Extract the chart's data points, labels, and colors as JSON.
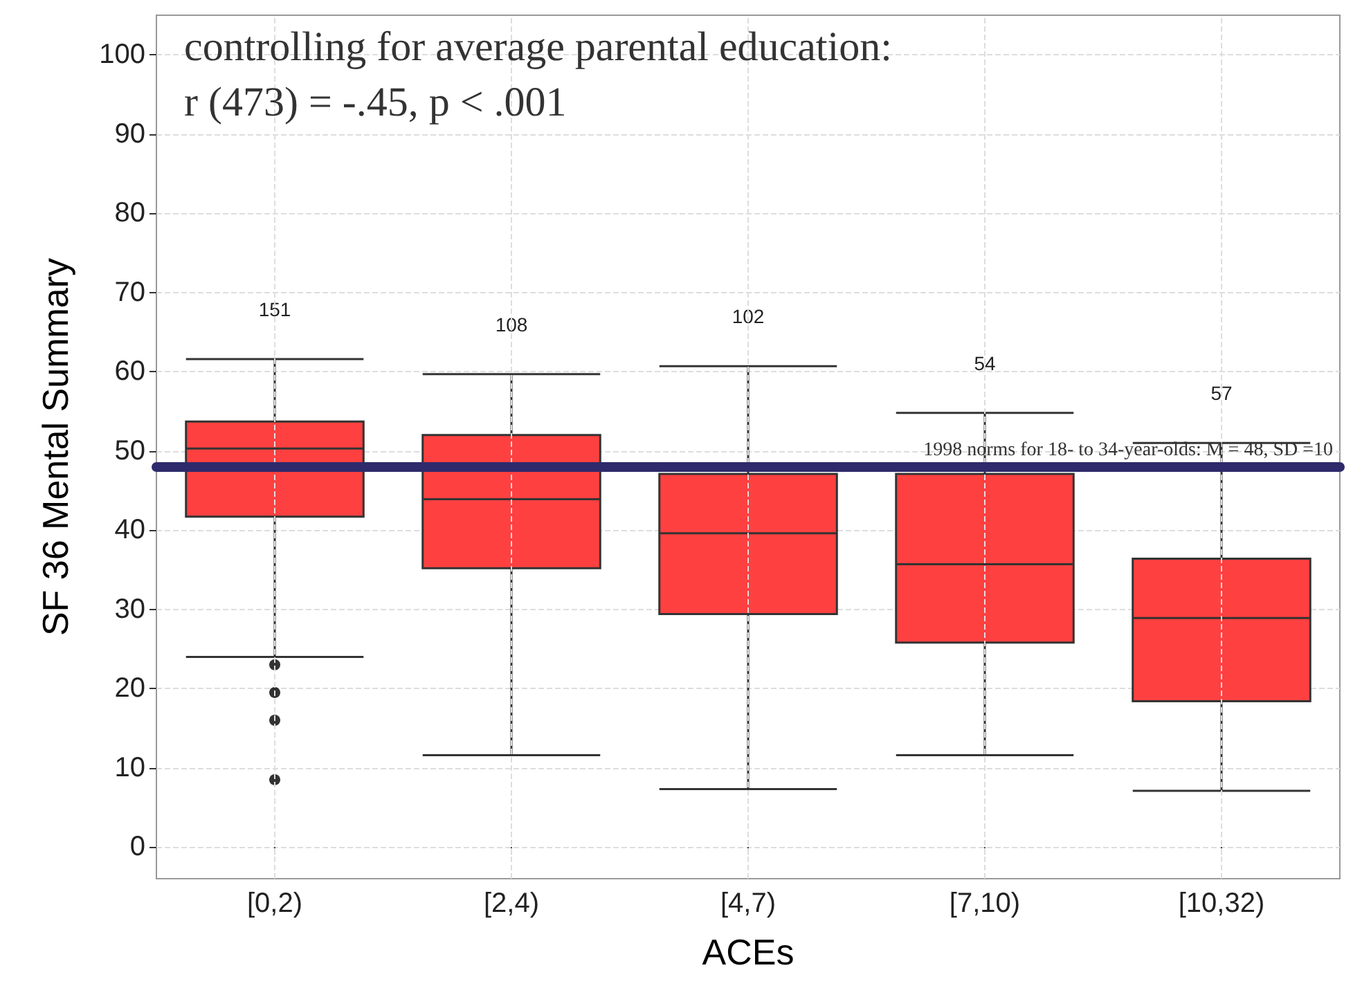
{
  "chart_data": {
    "type": "box",
    "title": "controlling for average parental education:",
    "subtitle": "r (473) = -.45, p < .001",
    "xlabel": "ACEs",
    "ylabel": "SF 36 Mental Summary",
    "categories": [
      "[0,2)",
      "[2,4)",
      "[4,7)",
      "[7,10)",
      "[10,32)"
    ],
    "series": [
      {
        "color": "#ff4040",
        "boxes": [
          {
            "low": 24,
            "q1": 41.7,
            "median": 50.3,
            "q3": 53.7,
            "high": 61.6,
            "outliers": [
              23,
              19.5,
              16,
              8.5
            ]
          },
          {
            "low": 11.6,
            "q1": 35.2,
            "median": 43.9,
            "q3": 52,
            "high": 59.7
          },
          {
            "low": 7.3,
            "q1": 29.4,
            "median": 39.6,
            "q3": 47.1,
            "high": 60.7
          },
          {
            "low": 11.6,
            "q1": 25.8,
            "median": 35.7,
            "q3": 47.1,
            "high": 54.8
          },
          {
            "low": 7.1,
            "q1": 18.4,
            "median": 28.9,
            "q3": 36.4,
            "high": 51
          }
        ]
      }
    ],
    "ylim": [
      -4,
      105
    ],
    "yticks": [
      0,
      10,
      20,
      30,
      40,
      50,
      60,
      70,
      80,
      90,
      100
    ],
    "grid": true,
    "ref_lines": [
      {
        "axis": "y",
        "value": 48,
        "label": "1998 norms for 18- to 34-year-olds: M = 48, SD =10",
        "color": "#2e2a6b"
      }
    ],
    "annotations": [
      "151",
      "108",
      "102",
      "54",
      "57"
    ]
  }
}
